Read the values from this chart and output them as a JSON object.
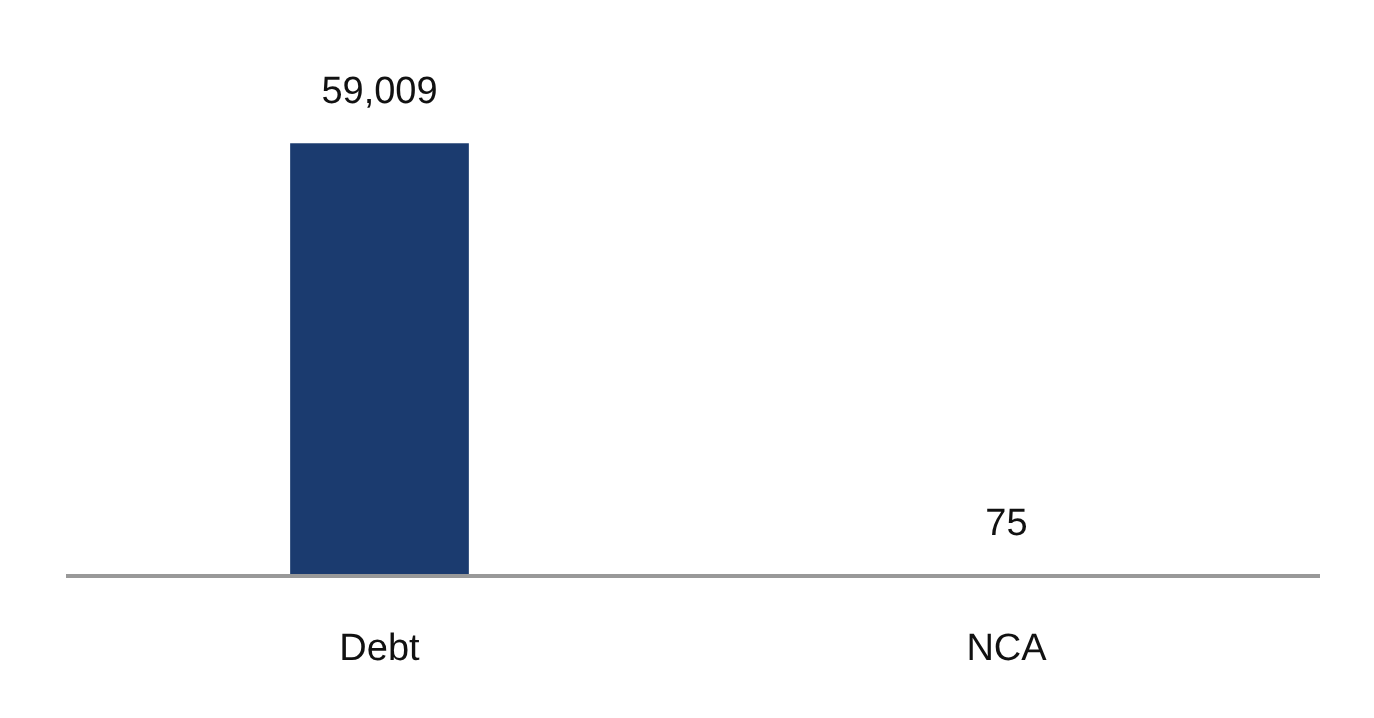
{
  "chart_data": {
    "type": "bar",
    "categories": [
      "Debt",
      "NCA"
    ],
    "values": [
      59009,
      75
    ],
    "value_labels": [
      "59,009",
      "75"
    ],
    "color": "#1b3b6f",
    "ylim": [
      0,
      60000
    ]
  }
}
